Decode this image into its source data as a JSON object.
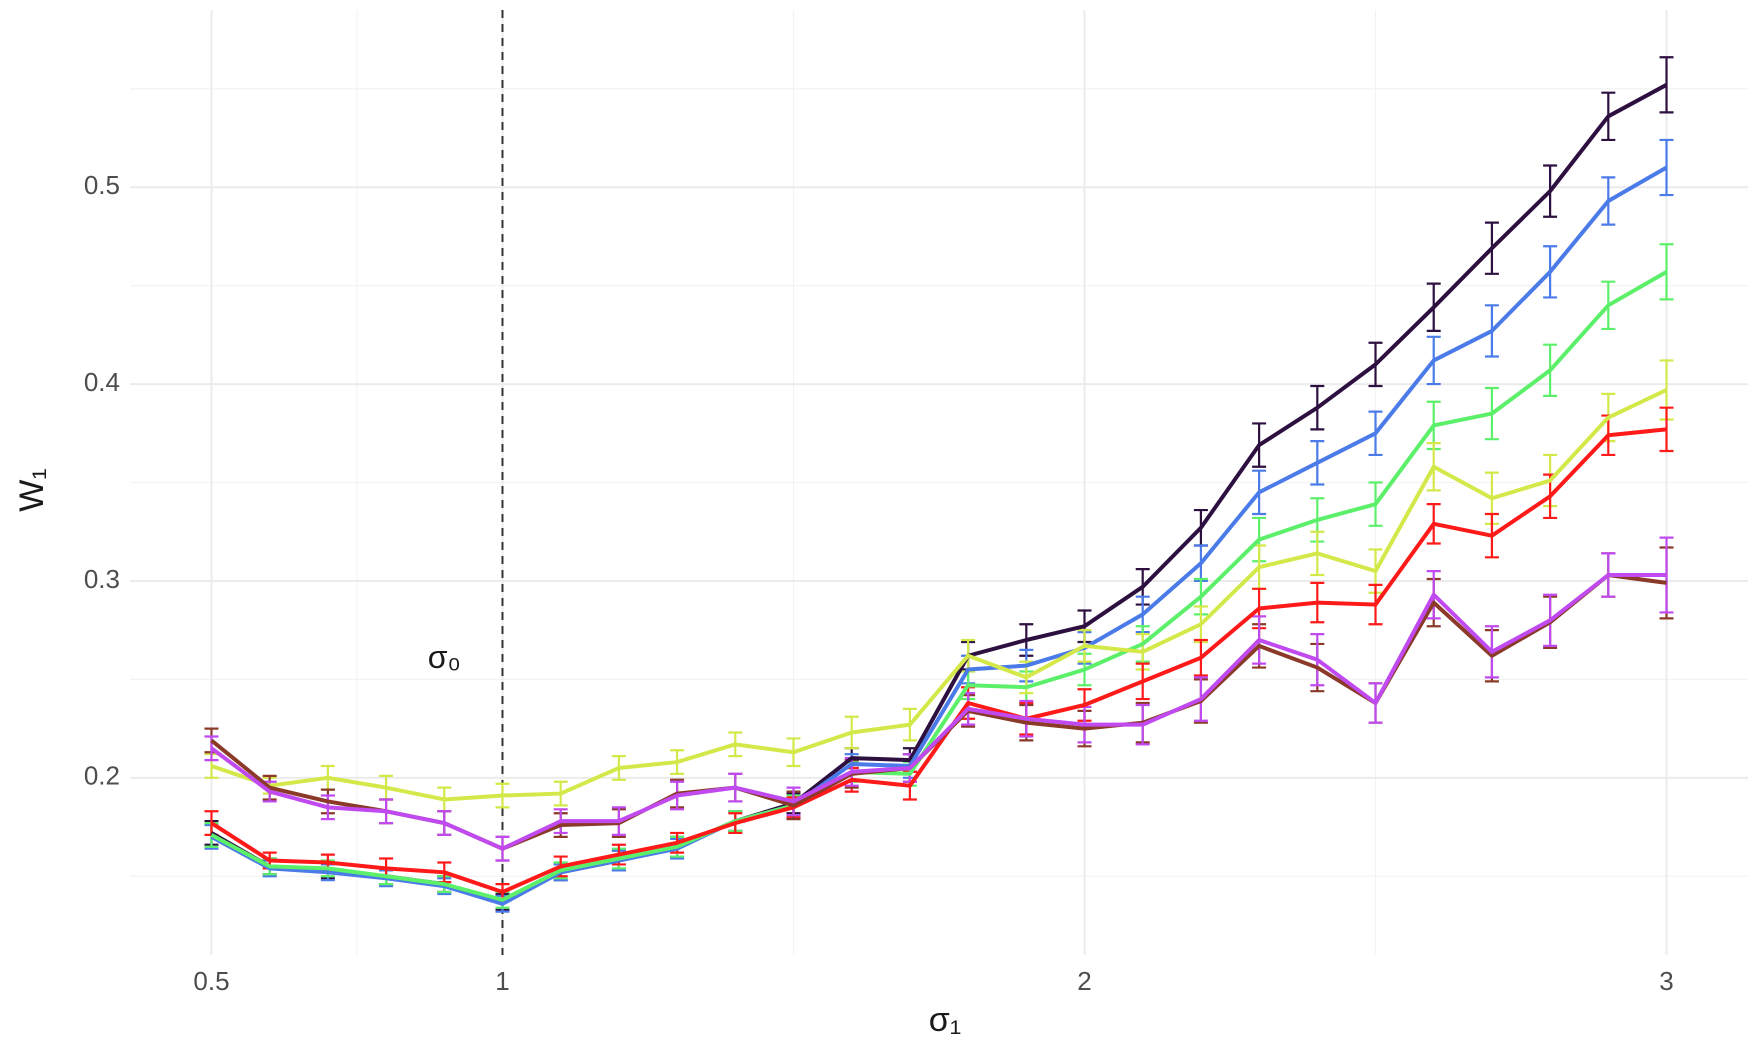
{
  "chart_data": {
    "type": "errorline",
    "xlabel": "σ₁",
    "ylabel": "W₁",
    "annotation": {
      "text": "σ₀",
      "x": 0.9,
      "y": 0.26
    },
    "vline": 1,
    "x": [
      0.5,
      0.6,
      0.7,
      0.8,
      0.9,
      1.0,
      1.1,
      1.2,
      1.3,
      1.4,
      1.5,
      1.6,
      1.7,
      1.8,
      1.9,
      2.0,
      2.1,
      2.2,
      2.3,
      2.4,
      2.5,
      2.6,
      2.7,
      2.8,
      2.9,
      3.0
    ],
    "xlim": [
      0.36,
      3.14
    ],
    "xticks": [
      0.5,
      1,
      2,
      3
    ],
    "xminor": [
      0.75,
      1.5,
      2.5
    ],
    "ylim": [
      0.11,
      0.59
    ],
    "yticks": [
      0.2,
      0.3,
      0.4,
      0.5
    ],
    "yminor": [
      0.15,
      0.25,
      0.35,
      0.45,
      0.55
    ],
    "grid": true,
    "series": [
      {
        "color": "#2d1040",
        "values": [
          0.172,
          0.155,
          0.153,
          0.15,
          0.146,
          0.137,
          0.152,
          0.158,
          0.165,
          0.178,
          0.187,
          0.21,
          0.209,
          0.262,
          0.27,
          0.277,
          0.297,
          0.327,
          0.369,
          0.388,
          0.41,
          0.439,
          0.469,
          0.498,
          0.536,
          0.552
        ],
        "errors": [
          0.006,
          0.004,
          0.004,
          0.004,
          0.004,
          0.004,
          0.004,
          0.005,
          0.005,
          0.005,
          0.005,
          0.005,
          0.006,
          0.007,
          0.008,
          0.008,
          0.009,
          0.009,
          0.011,
          0.011,
          0.011,
          0.012,
          0.013,
          0.013,
          0.012,
          0.014
        ]
      },
      {
        "color": "#4a7be8",
        "values": [
          0.17,
          0.154,
          0.152,
          0.149,
          0.145,
          0.136,
          0.152,
          0.158,
          0.164,
          0.178,
          0.186,
          0.207,
          0.206,
          0.255,
          0.257,
          0.266,
          0.283,
          0.309,
          0.345,
          0.36,
          0.375,
          0.412,
          0.427,
          0.457,
          0.493,
          0.51
        ],
        "errors": [
          0.006,
          0.004,
          0.004,
          0.004,
          0.004,
          0.004,
          0.004,
          0.005,
          0.005,
          0.005,
          0.005,
          0.005,
          0.006,
          0.007,
          0.008,
          0.008,
          0.009,
          0.009,
          0.011,
          0.011,
          0.011,
          0.012,
          0.013,
          0.013,
          0.012,
          0.014
        ]
      },
      {
        "color": "#5cf06a",
        "values": [
          0.171,
          0.155,
          0.154,
          0.15,
          0.146,
          0.138,
          0.153,
          0.159,
          0.165,
          0.178,
          0.186,
          0.203,
          0.202,
          0.247,
          0.246,
          0.255,
          0.268,
          0.292,
          0.321,
          0.331,
          0.339,
          0.379,
          0.385,
          0.407,
          0.44,
          0.457
        ],
        "errors": [
          0.006,
          0.004,
          0.004,
          0.004,
          0.004,
          0.004,
          0.004,
          0.005,
          0.005,
          0.005,
          0.005,
          0.005,
          0.006,
          0.007,
          0.008,
          0.008,
          0.009,
          0.009,
          0.011,
          0.011,
          0.011,
          0.012,
          0.013,
          0.013,
          0.012,
          0.014
        ]
      },
      {
        "color": "#d4e84a",
        "values": [
          0.206,
          0.196,
          0.2,
          0.195,
          0.189,
          0.191,
          0.192,
          0.205,
          0.208,
          0.217,
          0.213,
          0.223,
          0.227,
          0.262,
          0.251,
          0.267,
          0.264,
          0.278,
          0.307,
          0.314,
          0.305,
          0.358,
          0.342,
          0.351,
          0.383,
          0.397
        ],
        "errors": [
          0.006,
          0.004,
          0.006,
          0.006,
          0.006,
          0.006,
          0.006,
          0.006,
          0.006,
          0.006,
          0.007,
          0.008,
          0.008,
          0.008,
          0.008,
          0.008,
          0.009,
          0.009,
          0.011,
          0.011,
          0.011,
          0.012,
          0.013,
          0.013,
          0.012,
          0.015
        ]
      },
      {
        "color": "#ff1a1a",
        "values": [
          0.177,
          0.158,
          0.157,
          0.154,
          0.152,
          0.142,
          0.155,
          0.161,
          0.167,
          0.177,
          0.185,
          0.199,
          0.196,
          0.238,
          0.23,
          0.237,
          0.249,
          0.261,
          0.286,
          0.289,
          0.288,
          0.329,
          0.323,
          0.343,
          0.374,
          0.377
        ],
        "errors": [
          0.006,
          0.004,
          0.004,
          0.005,
          0.005,
          0.004,
          0.005,
          0.005,
          0.005,
          0.005,
          0.005,
          0.006,
          0.007,
          0.008,
          0.008,
          0.008,
          0.009,
          0.009,
          0.01,
          0.01,
          0.01,
          0.01,
          0.011,
          0.011,
          0.01,
          0.011
        ]
      },
      {
        "color": "#8b3a2a",
        "values": [
          0.219,
          0.195,
          0.188,
          0.183,
          0.177,
          0.164,
          0.176,
          0.177,
          0.192,
          0.195,
          0.186,
          0.202,
          0.205,
          0.234,
          0.228,
          0.225,
          0.228,
          0.239,
          0.267,
          0.256,
          0.238,
          0.289,
          0.262,
          0.279,
          0.303,
          0.299
        ],
        "errors": [
          0.006,
          0.006,
          0.006,
          0.006,
          0.006,
          0.006,
          0.006,
          0.007,
          0.007,
          0.007,
          0.007,
          0.007,
          0.007,
          0.008,
          0.009,
          0.009,
          0.01,
          0.011,
          0.011,
          0.012,
          0.01,
          0.012,
          0.013,
          0.013,
          0.011,
          0.018
        ]
      },
      {
        "color": "#c04af0",
        "values": [
          0.215,
          0.193,
          0.185,
          0.183,
          0.177,
          0.164,
          0.178,
          0.178,
          0.191,
          0.195,
          0.188,
          0.203,
          0.205,
          0.235,
          0.23,
          0.227,
          0.227,
          0.24,
          0.27,
          0.26,
          0.238,
          0.293,
          0.264,
          0.28,
          0.303,
          0.303
        ],
        "errors": [
          0.006,
          0.005,
          0.006,
          0.006,
          0.006,
          0.006,
          0.006,
          0.007,
          0.007,
          0.007,
          0.007,
          0.007,
          0.007,
          0.008,
          0.009,
          0.009,
          0.01,
          0.011,
          0.012,
          0.013,
          0.01,
          0.012,
          0.013,
          0.013,
          0.011,
          0.019
        ]
      }
    ]
  }
}
